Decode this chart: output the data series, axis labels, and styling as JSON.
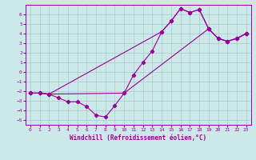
{
  "bg_color": "#cce8e8",
  "grid_color": "#aacccc",
  "line_color": "#990099",
  "xlim": [
    -0.5,
    23.5
  ],
  "ylim": [
    -5.5,
    7.0
  ],
  "xlabel": "Windchill (Refroidissement éolien,°C)",
  "xticks": [
    0,
    1,
    2,
    3,
    4,
    5,
    6,
    7,
    8,
    9,
    10,
    11,
    12,
    13,
    14,
    15,
    16,
    17,
    18,
    19,
    20,
    21,
    22,
    23
  ],
  "yticks": [
    -5,
    -4,
    -3,
    -2,
    -1,
    0,
    1,
    2,
    3,
    4,
    5,
    6
  ],
  "series1_x": [
    0,
    1,
    2,
    3,
    4,
    5,
    6,
    7,
    8,
    9,
    10,
    11,
    12,
    13,
    14,
    15,
    16,
    17,
    18,
    19,
    20,
    21,
    22,
    23
  ],
  "series1_y": [
    -2.2,
    -2.2,
    -2.3,
    -2.7,
    -3.1,
    -3.1,
    -3.6,
    -4.5,
    -4.7,
    -3.5,
    -2.2,
    -0.3,
    1.0,
    2.2,
    4.2,
    5.3,
    6.6,
    6.2,
    6.5,
    4.5,
    3.5,
    3.2,
    3.5,
    4.0
  ],
  "series2_x": [
    0,
    1,
    2,
    10,
    19,
    20,
    21,
    22,
    23
  ],
  "series2_y": [
    -2.2,
    -2.2,
    -2.3,
    -2.2,
    4.5,
    3.5,
    3.2,
    3.5,
    4.0
  ],
  "series3_x": [
    0,
    1,
    2,
    14,
    15,
    16,
    17,
    18,
    19,
    20,
    21,
    22,
    23
  ],
  "series3_y": [
    -2.2,
    -2.2,
    -2.3,
    4.2,
    5.3,
    6.6,
    6.2,
    6.5,
    4.5,
    3.5,
    3.2,
    3.5,
    4.0
  ]
}
